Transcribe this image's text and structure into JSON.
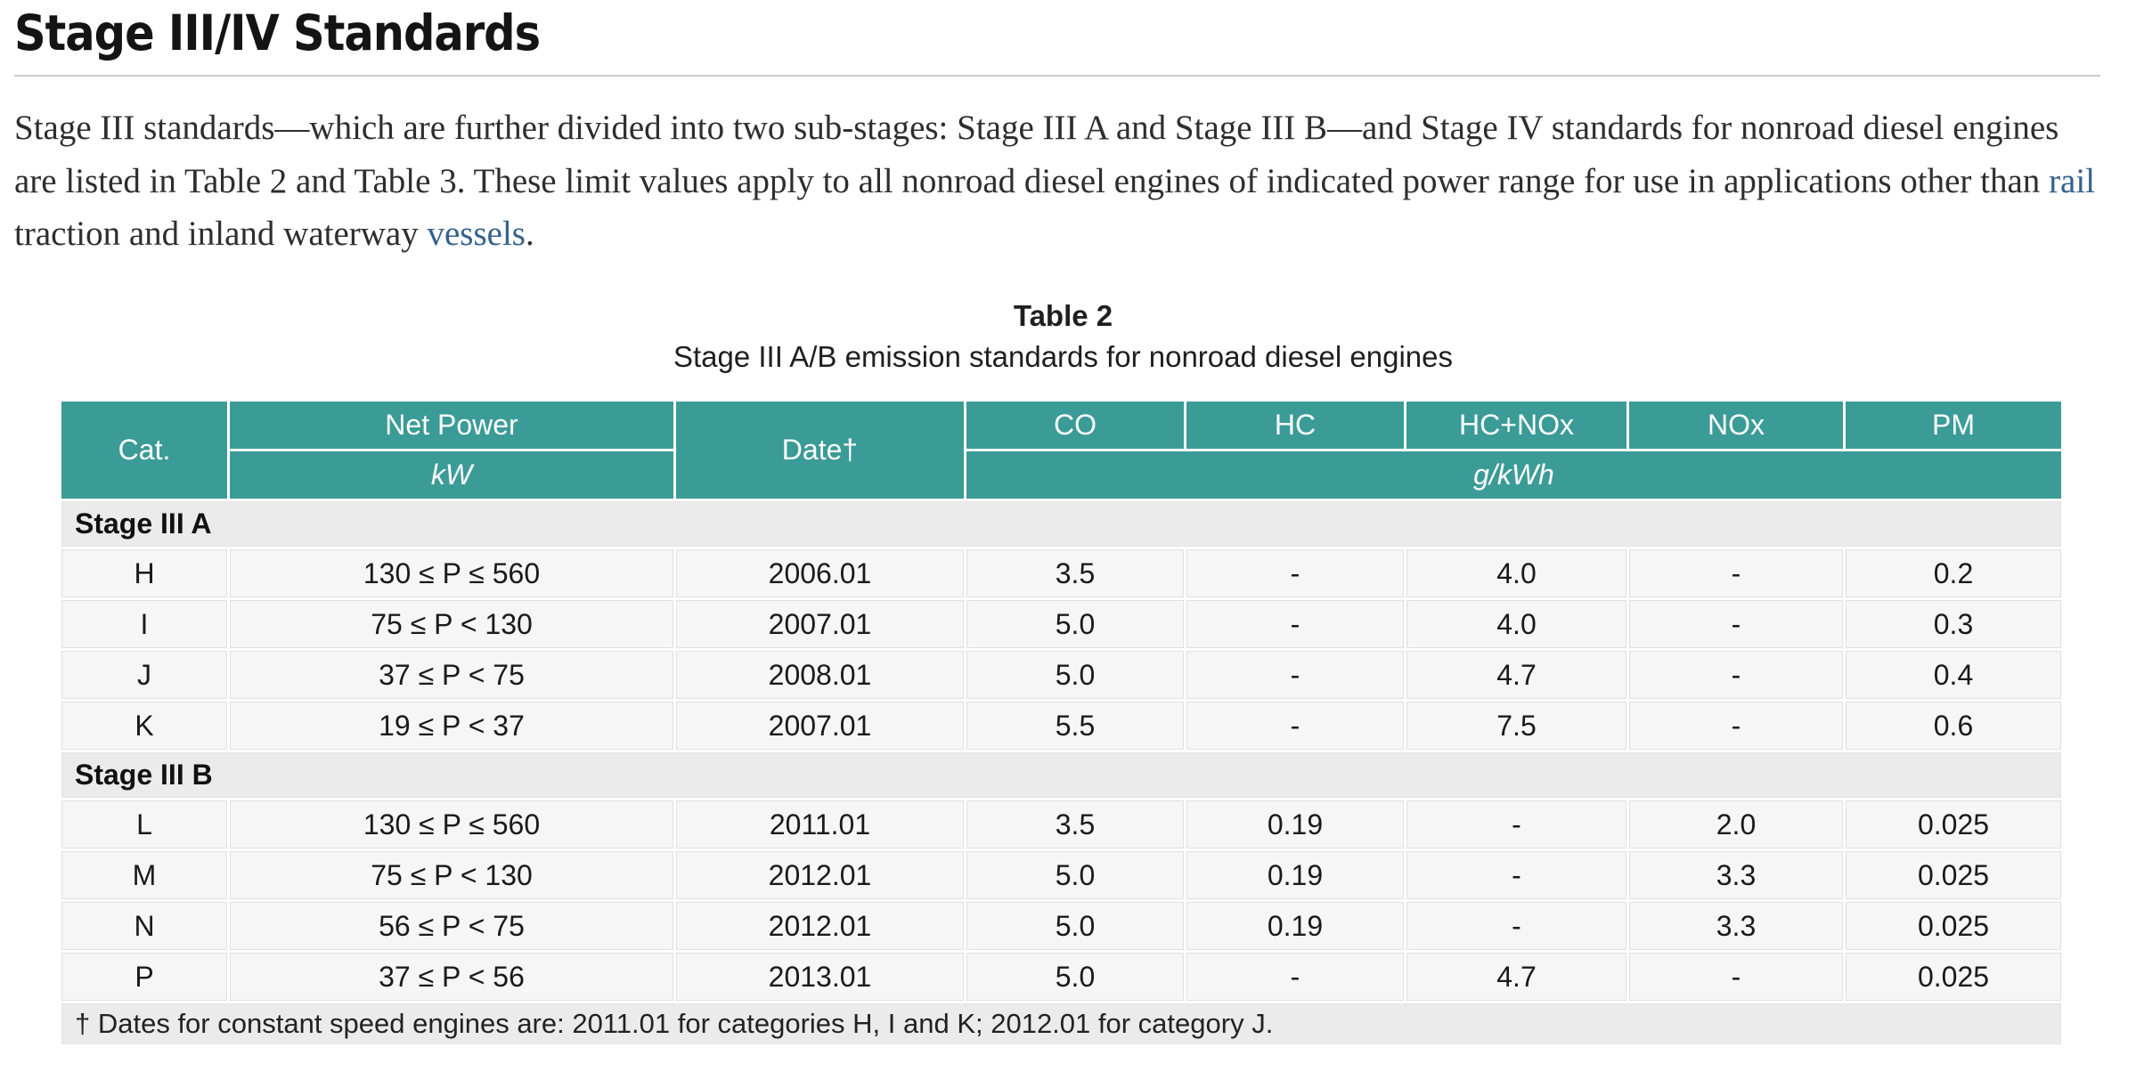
{
  "colors": {
    "header_bg": "#3B9B97",
    "link": "#35618E",
    "row_bg": "#F6F6F6",
    "section_bg": "#EBEBEB",
    "cell_border": "#E0E0E0",
    "rule": "#CBCBCB"
  },
  "page": {
    "title": "Stage III/IV Standards",
    "intro": {
      "before_rail": "Stage III standards—which are further divided into two sub-stages: Stage III A and Stage III B—and Stage IV standards for nonroad diesel engines are listed in Table 2 and Table 3. These limit values apply to all nonroad diesel engines of indicated power range for use in applications other than ",
      "rail_link": "rail",
      "between_links": " traction and inland waterway ",
      "vessels_link": "vessels",
      "after_vessels": "."
    }
  },
  "table": {
    "caption_title": "Table 2",
    "caption_subtitle": "Stage III A/B emission standards for nonroad diesel engines",
    "headers": {
      "cat": "Cat.",
      "net_power": "Net Power",
      "net_power_unit": "kW",
      "date": "Date†",
      "pollutants": [
        "CO",
        "HC",
        "HC+NOx",
        "NOx",
        "PM"
      ],
      "unit": "g/kWh"
    },
    "sections": [
      {
        "label": "Stage III A",
        "rows": [
          [
            "H",
            "130 ≤ P ≤ 560",
            "2006.01",
            "3.5",
            "-",
            "4.0",
            "-",
            "0.2"
          ],
          [
            "I",
            "75 ≤ P < 130",
            "2007.01",
            "5.0",
            "-",
            "4.0",
            "-",
            "0.3"
          ],
          [
            "J",
            "37 ≤ P < 75",
            "2008.01",
            "5.0",
            "-",
            "4.7",
            "-",
            "0.4"
          ],
          [
            "K",
            "19 ≤ P < 37",
            "2007.01",
            "5.5",
            "-",
            "7.5",
            "-",
            "0.6"
          ]
        ]
      },
      {
        "label": "Stage III B",
        "rows": [
          [
            "L",
            "130 ≤ P ≤ 560",
            "2011.01",
            "3.5",
            "0.19",
            "-",
            "2.0",
            "0.025"
          ],
          [
            "M",
            "75 ≤ P < 130",
            "2012.01",
            "5.0",
            "0.19",
            "-",
            "3.3",
            "0.025"
          ],
          [
            "N",
            "56 ≤ P < 75",
            "2012.01",
            "5.0",
            "0.19",
            "-",
            "3.3",
            "0.025"
          ],
          [
            "P",
            "37 ≤ P < 56",
            "2013.01",
            "5.0",
            "-",
            "4.7",
            "-",
            "0.025"
          ]
        ]
      }
    ],
    "footnote": "† Dates for constant speed engines are: 2011.01 for categories H, I and K; 2012.01 for category J."
  }
}
